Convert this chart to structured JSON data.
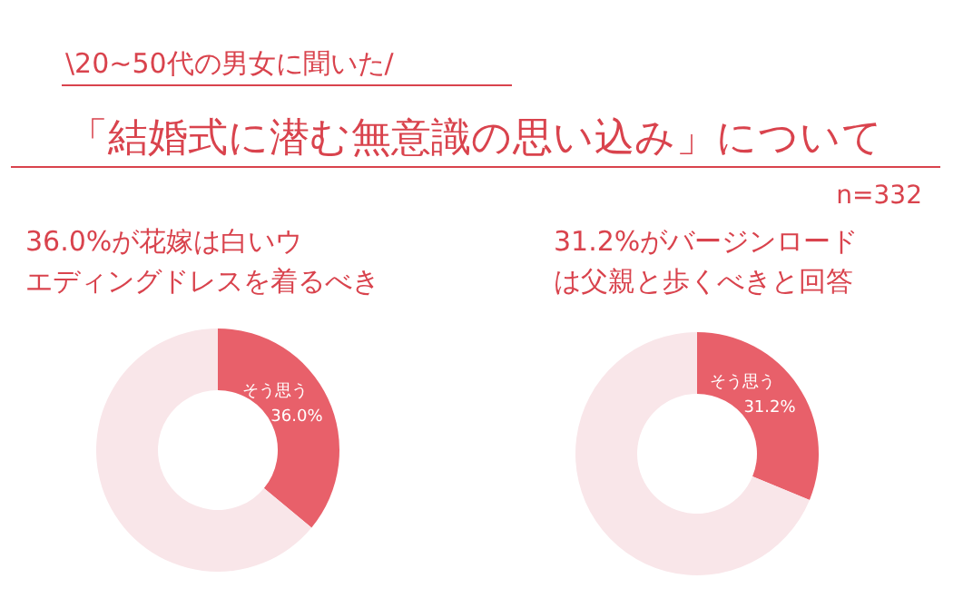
{
  "chart_data": [
    {
      "type": "other",
      "subtitle": "\\20~50代の男女に聞いた/",
      "title": "「結婚式に潜む無意識の思い込み」について",
      "annotations": [
        "n=332"
      ]
    },
    {
      "type": "donut",
      "title": "36.0%が花嫁は白いウエディングドレスを着るべき",
      "categories": [
        "そう思う",
        null
      ],
      "values": [
        36.0,
        64.0
      ],
      "colors": [
        "#e8606a",
        "#f9e6e9"
      ],
      "value_labels": [
        "36.0%",
        null
      ]
    },
    {
      "type": "donut",
      "title": "31.2%がバージンロードは父親と歩くべきと回答",
      "categories": [
        "そう思う",
        null
      ],
      "values": [
        31.2,
        68.8
      ],
      "colors": [
        "#e8606a",
        "#f9e6e9"
      ],
      "value_labels": [
        "31.2%",
        null
      ]
    }
  ]
}
